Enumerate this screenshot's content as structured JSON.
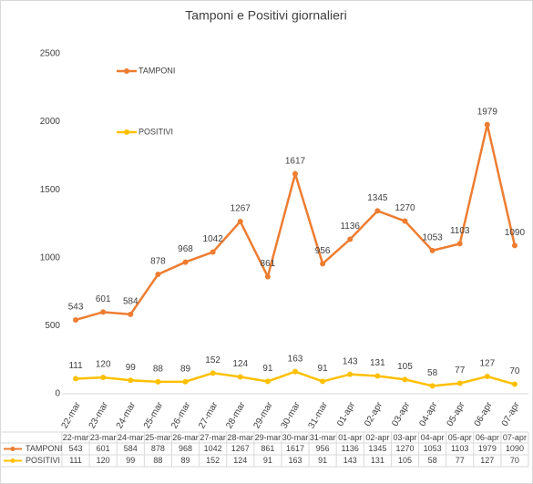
{
  "chart_data": {
    "type": "line",
    "title": "Tamponi e Positivi giornalieri",
    "categories": [
      "22-mar",
      "23-mar",
      "24-mar",
      "25-mar",
      "26-mar",
      "27-mar",
      "28-mar",
      "29-mar",
      "30-mar",
      "31-mar",
      "01-apr",
      "02-apr",
      "03-apr",
      "04-apr",
      "05-apr",
      "06-apr",
      "07-apr"
    ],
    "series": [
      {
        "name": "TAMPONI",
        "color": "#ED7D31",
        "values": [
          543,
          601,
          584,
          878,
          968,
          1042,
          1267,
          861,
          1617,
          956,
          1136,
          1345,
          1270,
          1053,
          1103,
          1979,
          1090
        ]
      },
      {
        "name": "POSITIVI",
        "color": "#FFC000",
        "values": [
          111,
          120,
          99,
          88,
          89,
          152,
          124,
          91,
          163,
          91,
          143,
          131,
          105,
          58,
          77,
          127,
          70
        ]
      }
    ],
    "ylim": [
      0,
      2500
    ],
    "yticks": [
      0,
      500,
      1000,
      1500,
      2000,
      2500
    ],
    "grid": false
  }
}
